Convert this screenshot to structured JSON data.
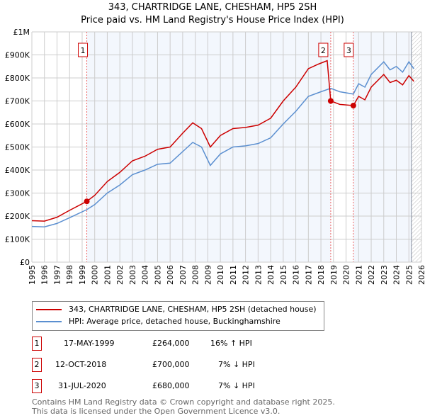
{
  "chart_data": {
    "type": "line",
    "title": "343, CHARTRIDGE LANE, CHESHAM, HP5 2SH",
    "subtitle": "Price paid vs. HM Land Registry's House Price Index (HPI)",
    "xlim": [
      1995,
      2026
    ],
    "ylim": [
      0,
      1000000
    ],
    "x_ticks": [
      "1995",
      "1996",
      "1997",
      "1998",
      "1999",
      "2000",
      "2001",
      "2002",
      "2003",
      "2004",
      "2005",
      "2006",
      "2007",
      "2008",
      "2009",
      "2010",
      "2011",
      "2012",
      "2013",
      "2014",
      "2015",
      "2016",
      "2017",
      "2018",
      "2019",
      "2020",
      "2021",
      "2022",
      "2023",
      "2024",
      "2025",
      "2026"
    ],
    "y_ticks": [
      {
        "v": 0,
        "label": "£0"
      },
      {
        "v": 100000,
        "label": "£100K"
      },
      {
        "v": 200000,
        "label": "£200K"
      },
      {
        "v": 300000,
        "label": "£300K"
      },
      {
        "v": 400000,
        "label": "£400K"
      },
      {
        "v": 500000,
        "label": "£500K"
      },
      {
        "v": 600000,
        "label": "£600K"
      },
      {
        "v": 700000,
        "label": "£700K"
      },
      {
        "v": 800000,
        "label": "£800K"
      },
      {
        "v": 900000,
        "label": "£900K"
      },
      {
        "v": 1000000,
        "label": "£1M"
      }
    ],
    "grid": true,
    "series": [
      {
        "name": "343, CHARTRIDGE LANE, CHESHAM, HP5 2SH (detached house)",
        "color": "#cc0000",
        "x": [
          1995,
          1996,
          1997,
          1998,
          1999.37,
          2000,
          2001,
          2002,
          2003,
          2004,
          2005,
          2006,
          2007,
          2007.8,
          2008.5,
          2009.2,
          2010,
          2011,
          2012,
          2013,
          2014,
          2015,
          2016,
          2017,
          2017.8,
          2018.5,
          2018.78,
          2019.5,
          2020.58,
          2021,
          2021.5,
          2022,
          2023,
          2023.5,
          2024,
          2024.5,
          2025,
          2025.4
        ],
        "y": [
          180000,
          178000,
          195000,
          225000,
          264000,
          290000,
          350000,
          390000,
          440000,
          460000,
          490000,
          500000,
          560000,
          605000,
          580000,
          500000,
          550000,
          580000,
          585000,
          595000,
          625000,
          700000,
          760000,
          840000,
          860000,
          875000,
          700000,
          685000,
          680000,
          720000,
          705000,
          760000,
          815000,
          780000,
          790000,
          770000,
          810000,
          785000
        ]
      },
      {
        "name": "HPI: Average price, detached house, Buckinghamshire",
        "color": "#5b8fd0",
        "x": [
          1995,
          1996,
          1997,
          1998,
          1999.37,
          2000,
          2001,
          2002,
          2003,
          2004,
          2005,
          2006,
          2007,
          2007.8,
          2008.5,
          2009.2,
          2010,
          2011,
          2012,
          2013,
          2014,
          2015,
          2016,
          2017,
          2018,
          2018.78,
          2019.5,
          2020.58,
          2021,
          2021.5,
          2022,
          2023,
          2023.5,
          2024,
          2024.5,
          2025,
          2025.4
        ],
        "y": [
          155000,
          153000,
          168000,
          193000,
          228000,
          250000,
          300000,
          335000,
          380000,
          400000,
          425000,
          430000,
          480000,
          520000,
          500000,
          420000,
          470000,
          500000,
          505000,
          515000,
          540000,
          600000,
          655000,
          720000,
          740000,
          755000,
          740000,
          730000,
          775000,
          760000,
          815000,
          870000,
          835000,
          850000,
          825000,
          870000,
          840000
        ]
      }
    ],
    "sales": [
      {
        "label": "1",
        "x": 1999.37,
        "y": 264000,
        "date": "17-MAY-1999",
        "price": "£264,000",
        "hpi": "16% ↑ HPI"
      },
      {
        "label": "2",
        "x": 2018.78,
        "y": 700000,
        "date": "12-OCT-2018",
        "price": "£700,000",
        "hpi": "7% ↓ HPI"
      },
      {
        "label": "3",
        "x": 2020.58,
        "y": 680000,
        "date": "31-JUL-2020",
        "price": "£680,000",
        "hpi": "7% ↓ HPI"
      }
    ],
    "forecast_start": 2025.2
  },
  "footer": [
    "Contains HM Land Registry data © Crown copyright and database right 2025.",
    "This data is licensed under the Open Government Licence v3.0."
  ]
}
